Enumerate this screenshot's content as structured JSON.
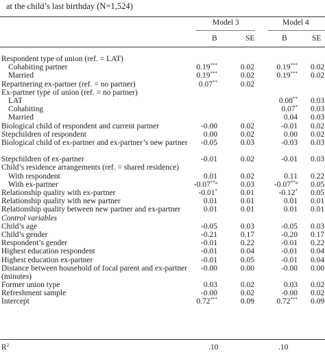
{
  "caption": "at the child’s last birthday (N=1,524)",
  "models": [
    "Model 3",
    "Model 4"
  ],
  "col_headers": [
    "B",
    "SE",
    "B",
    "SE"
  ],
  "rows": [
    {
      "label": "Respondent type of union (ref. = LAT)",
      "indent": false,
      "italic": false,
      "cells": [
        "",
        "",
        "",
        ""
      ],
      "sups": [
        "",
        "",
        "",
        ""
      ]
    },
    {
      "label": "Cohabiting partner",
      "indent": true,
      "italic": false,
      "cells": [
        "0.19",
        "0.02",
        "0.19",
        "0.02"
      ],
      "sups": [
        "***",
        "",
        "***",
        ""
      ]
    },
    {
      "label": "Married",
      "indent": true,
      "italic": false,
      "cells": [
        "0.19",
        "0.02",
        "0.19",
        "0.02"
      ],
      "sups": [
        "***",
        "",
        "***",
        ""
      ]
    },
    {
      "label": "Repartnering ex-partner (ref. = no partner)",
      "indent": false,
      "italic": false,
      "cells": [
        "0.07",
        "0.02",
        "",
        ""
      ],
      "sups": [
        "**",
        "",
        "",
        ""
      ]
    },
    {
      "label": "Ex-partner type of union (ref. = no partner)",
      "indent": false,
      "italic": false,
      "cells": [
        "",
        "",
        "",
        ""
      ],
      "sups": [
        "",
        "",
        "",
        ""
      ]
    },
    {
      "label": "LAT",
      "indent": true,
      "italic": false,
      "cells": [
        "",
        "",
        "0.08",
        "0.03"
      ],
      "sups": [
        "",
        "",
        "**",
        ""
      ]
    },
    {
      "label": "Cohabiting",
      "indent": true,
      "italic": false,
      "cells": [
        "",
        "",
        "0.07",
        "0.03"
      ],
      "sups": [
        "",
        "",
        "*",
        ""
      ]
    },
    {
      "label": "Married",
      "indent": true,
      "italic": false,
      "cells": [
        "",
        "",
        "0.04",
        "0.03"
      ],
      "sups": [
        "",
        "",
        "",
        ""
      ]
    },
    {
      "label": "Biological child of respondent and current partner",
      "indent": false,
      "italic": false,
      "cells": [
        "-0.00",
        "0.02",
        "-0.01",
        "0.02"
      ],
      "sups": [
        "",
        "",
        "",
        ""
      ]
    },
    {
      "label": "Stepchildren of respondent",
      "indent": false,
      "italic": false,
      "cells": [
        "0.00",
        "0.02",
        "0.00",
        "0.02"
      ],
      "sups": [
        "",
        "",
        "",
        ""
      ]
    },
    {
      "label": "Biological child of ex-partner and ex-partner’s new partner",
      "indent": false,
      "italic": false,
      "cells": [
        "-0.05",
        "0.03",
        "-0.03",
        "0.03"
      ],
      "sups": [
        "",
        "",
        "",
        ""
      ],
      "lines": 2
    },
    {
      "label": "Stepchildren of ex-partner",
      "indent": false,
      "italic": false,
      "cells": [
        "-0.01",
        "0.02",
        "-0.01",
        "0.03"
      ],
      "sups": [
        "",
        "",
        "",
        ""
      ]
    },
    {
      "label": "Child’s residence arrangements (ref. = shared residence)",
      "indent": false,
      "italic": false,
      "cells": [
        "",
        "",
        "",
        ""
      ],
      "sups": [
        "",
        "",
        "",
        ""
      ]
    },
    {
      "label": "With respondent",
      "indent": true,
      "italic": false,
      "cells": [
        "0.01",
        "0.02",
        "0.11",
        "0.22"
      ],
      "sups": [
        "",
        "",
        "",
        ""
      ]
    },
    {
      "label": "With ex-partner",
      "indent": true,
      "italic": false,
      "cells": [
        "-0.07",
        "0.03",
        "-0.07",
        "0.05"
      ],
      "sups": [
        "**a",
        "",
        "**a",
        ""
      ]
    },
    {
      "label": "Relationship quality with ex-partner",
      "indent": false,
      "italic": false,
      "cells": [
        "-0.01",
        "0.01",
        "-0.12",
        "0.05"
      ],
      "sups": [
        "*",
        "",
        "*",
        ""
      ]
    },
    {
      "label": "Relationship quality with new partner",
      "indent": false,
      "italic": false,
      "cells": [
        "0.01",
        "0.01",
        "0.01",
        "0.01"
      ],
      "sups": [
        "",
        "",
        "",
        ""
      ]
    },
    {
      "label": "Relationship quality between new partner and ex-partner",
      "indent": false,
      "italic": false,
      "cells": [
        "0.01",
        "0.01",
        "0.01",
        "0.01"
      ],
      "sups": [
        "",
        "",
        "",
        ""
      ]
    },
    {
      "label": "Control variables",
      "indent": false,
      "italic": true,
      "cells": [
        "",
        "",
        "",
        ""
      ],
      "sups": [
        "",
        "",
        "",
        ""
      ]
    },
    {
      "label": "Child’s age",
      "indent": false,
      "italic": false,
      "cells": [
        "-0.05",
        "0.03",
        "-0.05",
        "0.03"
      ],
      "sups": [
        "",
        "",
        "",
        ""
      ]
    },
    {
      "label": "Child’s gender",
      "indent": false,
      "italic": false,
      "cells": [
        "-0.21",
        "0.17",
        "-0.20",
        "0.17"
      ],
      "sups": [
        "",
        "",
        "",
        ""
      ]
    },
    {
      "label": "Respondent’s gender",
      "indent": false,
      "italic": false,
      "cells": [
        "-0.01",
        "0.22",
        "-0.01",
        "0.22"
      ],
      "sups": [
        "",
        "",
        "",
        ""
      ]
    },
    {
      "label": "Highest education respondent",
      "indent": false,
      "italic": false,
      "cells": [
        "-0.01",
        "0.04",
        "-0.01",
        "0.04"
      ],
      "sups": [
        "",
        "",
        "",
        ""
      ]
    },
    {
      "label": "Highest education ex-partner",
      "indent": false,
      "italic": false,
      "cells": [
        "-0.01",
        "0.05",
        "-0.01",
        "0.04"
      ],
      "sups": [
        "",
        "",
        "",
        ""
      ]
    },
    {
      "label": "Distance between household of focal parent and ex-partner (minutes)",
      "indent": false,
      "italic": false,
      "cells": [
        "-0.00",
        "0.00",
        "-0.00",
        "0.00"
      ],
      "sups": [
        "",
        "",
        "",
        ""
      ],
      "lines": 2
    },
    {
      "label": "Former union type",
      "indent": false,
      "italic": false,
      "cells": [
        "0.03",
        "0.02",
        "0.03",
        "0.02"
      ],
      "sups": [
        "",
        "",
        "",
        ""
      ]
    },
    {
      "label": "Refreshment sample",
      "indent": false,
      "italic": false,
      "cells": [
        "-0.00",
        "0.02",
        "-0.00",
        "0.02"
      ],
      "sups": [
        "",
        "",
        "",
        ""
      ]
    },
    {
      "label": "Intercept",
      "indent": false,
      "italic": false,
      "cells": [
        "0.72",
        "0.09",
        "0.72",
        "0.09"
      ],
      "sups": [
        "***",
        "",
        "***",
        ""
      ]
    }
  ],
  "r2": {
    "label": "R",
    "label_sup": "2",
    "model3": ".10",
    "model4": ".10"
  }
}
